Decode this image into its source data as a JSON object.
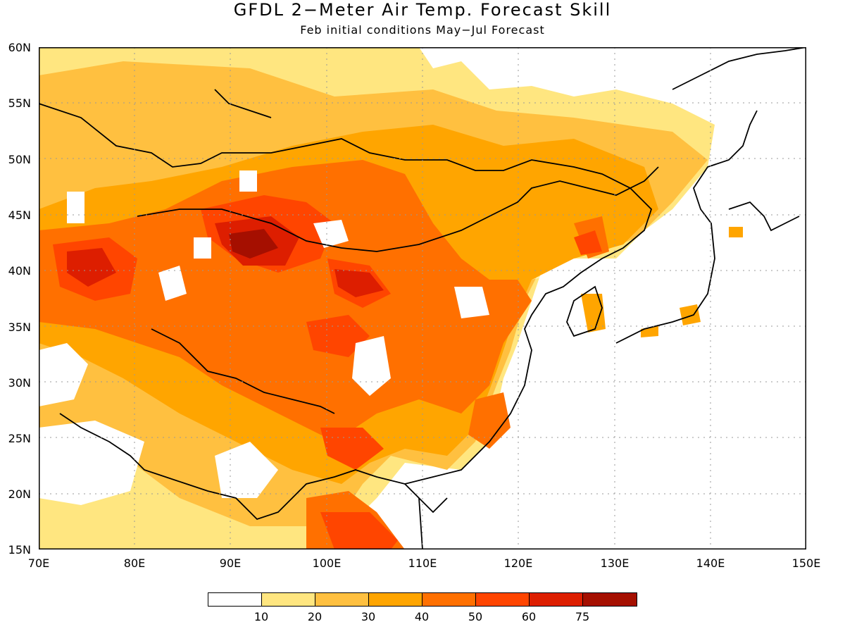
{
  "title": "GFDL 2−Meter Air Temp. Forecast Skill",
  "subtitle": "Feb initial conditions   May−Jul Forecast",
  "axes": {
    "lat_labels": [
      "60N",
      "55N",
      "50N",
      "45N",
      "40N",
      "35N",
      "30N",
      "25N",
      "20N",
      "15N"
    ],
    "lon_labels": [
      "70E",
      "80E",
      "90E",
      "100E",
      "110E",
      "120E",
      "130E",
      "140E",
      "150E"
    ],
    "lat_range": [
      15,
      60
    ],
    "lon_range": [
      70,
      150
    ],
    "grid": "dotted"
  },
  "colorbar": {
    "labels": [
      "10",
      "20",
      "30",
      "40",
      "50",
      "60",
      "75"
    ],
    "colors": [
      "#ffffff",
      "#ffe680",
      "#ffc040",
      "#ffa500",
      "#ff7000",
      "#ff4500",
      "#dd1e00",
      "#a50f00"
    ]
  },
  "colors": {
    "background": "#ffffff",
    "border": "#000000",
    "grid": "#999999"
  }
}
